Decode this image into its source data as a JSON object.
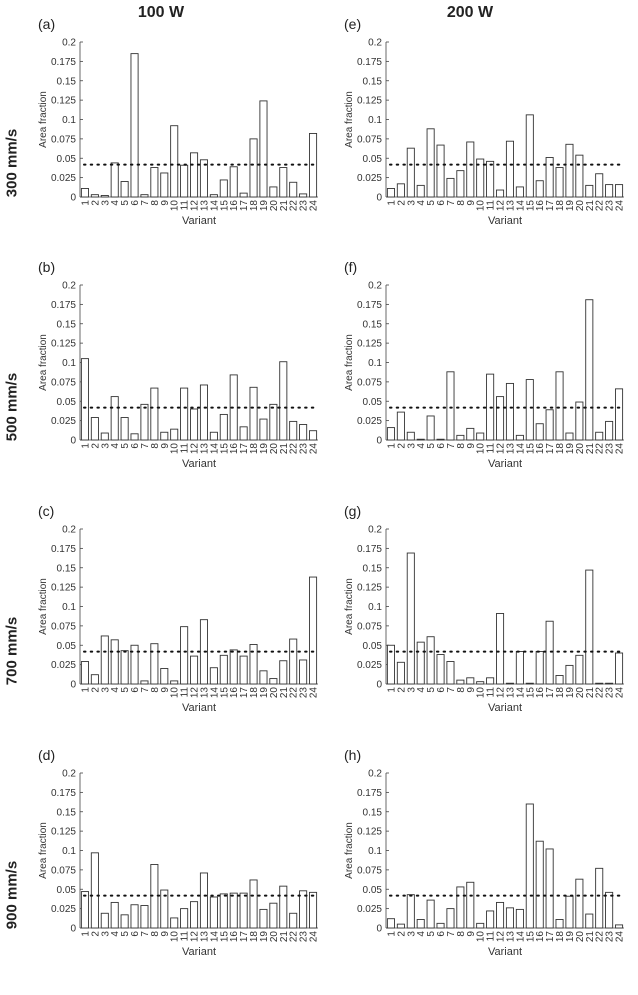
{
  "column_headers": [
    "100 W",
    "200 W"
  ],
  "row_headers": [
    "300 mm/s",
    "500 mm/s",
    "700 mm/s",
    "900 mm/s"
  ],
  "chart_data": [
    {
      "panel": "(a)",
      "type": "bar",
      "xlabel": "Variant",
      "ylabel": "Area fraction",
      "ylim": [
        0,
        0.2
      ],
      "yticks": [
        "0",
        "0.025",
        "0.05",
        "0.075",
        "0.1",
        "0.125",
        "0.15",
        "0.175",
        "0.2"
      ],
      "categories": [
        "1",
        "2",
        "3",
        "4",
        "5",
        "6",
        "7",
        "8",
        "9",
        "10",
        "11",
        "12",
        "13",
        "14",
        "15",
        "16",
        "17",
        "18",
        "19",
        "20",
        "21",
        "22",
        "23",
        "24"
      ],
      "values": [
        0.011,
        0.003,
        0.002,
        0.044,
        0.02,
        0.185,
        0.003,
        0.038,
        0.031,
        0.092,
        0.041,
        0.057,
        0.048,
        0.003,
        0.022,
        0.039,
        0.005,
        0.075,
        0.124,
        0.013,
        0.038,
        0.019,
        0.004,
        0.082
      ],
      "reference_line": 0.0417
    },
    {
      "panel": "(b)",
      "type": "bar",
      "xlabel": "Variant",
      "ylabel": "Area fraction",
      "ylim": [
        0,
        0.2
      ],
      "yticks": [
        "0",
        "0.025",
        "0.05",
        "0.075",
        "0.1",
        "0.125",
        "0.15",
        "0.175",
        "0.2"
      ],
      "categories": [
        "1",
        "2",
        "3",
        "4",
        "5",
        "6",
        "7",
        "8",
        "9",
        "10",
        "11",
        "12",
        "13",
        "14",
        "15",
        "16",
        "17",
        "18",
        "19",
        "20",
        "21",
        "22",
        "23",
        "24"
      ],
      "values": [
        0.105,
        0.029,
        0.009,
        0.056,
        0.029,
        0.008,
        0.046,
        0.067,
        0.01,
        0.014,
        0.067,
        0.04,
        0.071,
        0.01,
        0.033,
        0.084,
        0.017,
        0.068,
        0.027,
        0.046,
        0.101,
        0.024,
        0.02,
        0.012
      ],
      "reference_line": 0.0417
    },
    {
      "panel": "(c)",
      "type": "bar",
      "xlabel": "Variant",
      "ylabel": "Area fraction",
      "ylim": [
        0,
        0.2
      ],
      "yticks": [
        "0",
        "0.025",
        "0.05",
        "0.075",
        "0.1",
        "0.125",
        "0.15",
        "0.175",
        "0.2"
      ],
      "categories": [
        "1",
        "2",
        "3",
        "4",
        "5",
        "6",
        "7",
        "8",
        "9",
        "10",
        "11",
        "12",
        "13",
        "14",
        "15",
        "16",
        "17",
        "18",
        "19",
        "20",
        "21",
        "22",
        "23",
        "24"
      ],
      "values": [
        0.029,
        0.012,
        0.062,
        0.057,
        0.043,
        0.05,
        0.004,
        0.052,
        0.02,
        0.004,
        0.074,
        0.036,
        0.083,
        0.021,
        0.037,
        0.044,
        0.036,
        0.051,
        0.017,
        0.007,
        0.03,
        0.058,
        0.031,
        0.138
      ],
      "reference_line": 0.0417
    },
    {
      "panel": "(d)",
      "type": "bar",
      "xlabel": "Variant",
      "ylabel": "Area fraction",
      "ylim": [
        0,
        0.2
      ],
      "yticks": [
        "0",
        "0.025",
        "0.05",
        "0.075",
        "0.1",
        "0.125",
        "0.15",
        "0.175",
        "0.2"
      ],
      "categories": [
        "1",
        "2",
        "3",
        "4",
        "5",
        "6",
        "7",
        "8",
        "9",
        "10",
        "11",
        "12",
        "13",
        "14",
        "15",
        "16",
        "17",
        "18",
        "19",
        "20",
        "21",
        "22",
        "23",
        "24"
      ],
      "values": [
        0.047,
        0.097,
        0.019,
        0.033,
        0.017,
        0.03,
        0.029,
        0.082,
        0.049,
        0.013,
        0.025,
        0.034,
        0.071,
        0.04,
        0.044,
        0.045,
        0.045,
        0.062,
        0.024,
        0.032,
        0.054,
        0.019,
        0.048,
        0.046
      ],
      "reference_line": 0.0417
    },
    {
      "panel": "(e)",
      "type": "bar",
      "xlabel": "Variant",
      "ylabel": "Area fraction",
      "ylim": [
        0,
        0.2
      ],
      "yticks": [
        "0",
        "0.025",
        "0.05",
        "0.075",
        "0.1",
        "0.125",
        "0.15",
        "0.175",
        "0.2"
      ],
      "categories": [
        "1",
        "2",
        "3",
        "4",
        "5",
        "6",
        "7",
        "8",
        "9",
        "10",
        "11",
        "12",
        "13",
        "14",
        "15",
        "16",
        "17",
        "18",
        "19",
        "20",
        "21",
        "22",
        "23",
        "24"
      ],
      "values": [
        0.011,
        0.017,
        0.063,
        0.015,
        0.088,
        0.067,
        0.024,
        0.034,
        0.071,
        0.049,
        0.046,
        0.009,
        0.072,
        0.013,
        0.106,
        0.021,
        0.051,
        0.038,
        0.068,
        0.054,
        0.015,
        0.03,
        0.016,
        0.016
      ],
      "reference_line": 0.0417
    },
    {
      "panel": "(f)",
      "type": "bar",
      "xlabel": "Variant",
      "ylabel": "Area fraction",
      "ylim": [
        0,
        0.2
      ],
      "yticks": [
        "0",
        "0.025",
        "0.05",
        "0.075",
        "0.1",
        "0.125",
        "0.15",
        "0.175",
        "0.2"
      ],
      "categories": [
        "1",
        "2",
        "3",
        "4",
        "5",
        "6",
        "7",
        "8",
        "9",
        "10",
        "11",
        "12",
        "13",
        "14",
        "15",
        "16",
        "17",
        "18",
        "19",
        "20",
        "21",
        "22",
        "23",
        "24"
      ],
      "values": [
        0.016,
        0.036,
        0.01,
        0.001,
        0.031,
        0.001,
        0.088,
        0.006,
        0.015,
        0.009,
        0.085,
        0.056,
        0.073,
        0.006,
        0.078,
        0.021,
        0.039,
        0.088,
        0.009,
        0.049,
        0.181,
        0.01,
        0.024,
        0.066
      ],
      "reference_line": 0.0417
    },
    {
      "panel": "(g)",
      "type": "bar",
      "xlabel": "Variant",
      "ylabel": "Area fraction",
      "ylim": [
        0,
        0.2
      ],
      "yticks": [
        "0",
        "0.025",
        "0.05",
        "0.075",
        "0.1",
        "0.125",
        "0.15",
        "0.175",
        "0.2"
      ],
      "categories": [
        "1",
        "2",
        "3",
        "4",
        "5",
        "6",
        "7",
        "8",
        "9",
        "10",
        "11",
        "12",
        "13",
        "14",
        "15",
        "16",
        "17",
        "18",
        "19",
        "20",
        "21",
        "22",
        "23",
        "24"
      ],
      "values": [
        0.05,
        0.028,
        0.169,
        0.054,
        0.061,
        0.038,
        0.029,
        0.005,
        0.008,
        0.003,
        0.008,
        0.091,
        0.001,
        0.042,
        0.001,
        0.042,
        0.081,
        0.011,
        0.024,
        0.037,
        0.147,
        0.001,
        0.001,
        0.04
      ],
      "reference_line": 0.0417
    },
    {
      "panel": "(h)",
      "type": "bar",
      "xlabel": "Variant",
      "ylabel": "Area fraction",
      "ylim": [
        0,
        0.2
      ],
      "yticks": [
        "0",
        "0.025",
        "0.05",
        "0.075",
        "0.1",
        "0.125",
        "0.15",
        "0.175",
        "0.2"
      ],
      "categories": [
        "1",
        "2",
        "3",
        "4",
        "5",
        "6",
        "7",
        "8",
        "9",
        "10",
        "11",
        "12",
        "13",
        "14",
        "15",
        "16",
        "17",
        "18",
        "19",
        "20",
        "21",
        "22",
        "23",
        "24"
      ],
      "values": [
        0.012,
        0.005,
        0.043,
        0.011,
        0.036,
        0.006,
        0.025,
        0.053,
        0.059,
        0.006,
        0.022,
        0.033,
        0.026,
        0.024,
        0.16,
        0.112,
        0.102,
        0.011,
        0.041,
        0.063,
        0.018,
        0.077,
        0.046,
        0.004
      ],
      "reference_line": 0.0417
    }
  ]
}
